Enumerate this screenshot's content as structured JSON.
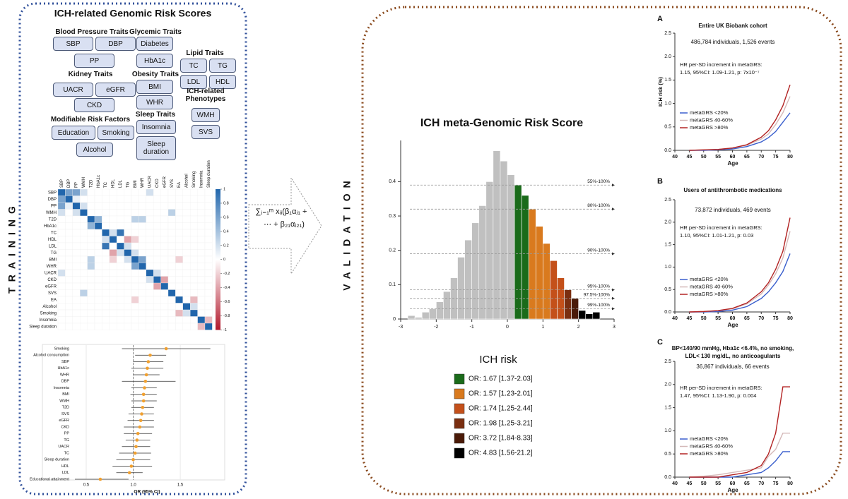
{
  "training": {
    "side_label": "TRAINING",
    "title": "ICH-related Genomic Risk Scores",
    "groups": [
      {
        "title": "Blood Pressure Traits",
        "items": [
          "SBP",
          "DBP",
          "PP"
        ]
      },
      {
        "title": "Kidney Traits",
        "items": [
          "UACR",
          "eGFR",
          "CKD"
        ]
      },
      {
        "title": "Modifiable Risk Factors",
        "items": [
          "Education",
          "Smoking",
          "Alcohol"
        ]
      },
      {
        "title": "Glycemic Traits",
        "items": [
          "Diabetes",
          "HbA1c"
        ]
      },
      {
        "title": "Obesity Traits",
        "items": [
          "BMI",
          "WHR"
        ]
      },
      {
        "title": "Sleep Traits",
        "items": [
          "Insomnia",
          "Sleep duration"
        ]
      },
      {
        "title": "Lipid Traits",
        "items": [
          "TC",
          "TG",
          "LDL",
          "HDL"
        ]
      },
      {
        "title": "ICH-related Phenotypes",
        "items": [
          "WMH",
          "SVS"
        ]
      }
    ]
  },
  "formula": [
    "∑ⱼ₌₁ᵐ xᵢⱼ(β₁αⱼ₁ +",
    "⋯ + β₂₁αⱼ₂₁)"
  ],
  "validation": {
    "side_label": "VALIDATION",
    "legend": {
      "title": "ICH risk",
      "items": [
        {
          "label": "OR: 1.67 [1.37-2.03]",
          "color": "#1a6b1a"
        },
        {
          "label": "OR: 1.57 [1.23-2.01]",
          "color": "#d97a1e"
        },
        {
          "label": "OR: 1.74 [1.25-2.44]",
          "color": "#c4501a"
        },
        {
          "label": "OR: 1.98 [1.25-3.21]",
          "color": "#7a2e10"
        },
        {
          "label": "OR: 3.72 [1.84-8.33]",
          "color": "#4a1a08"
        },
        {
          "label": "OR: 4.83 [1.56-21.2]",
          "color": "#000000"
        }
      ]
    }
  },
  "chart_data": [
    {
      "type": "heatmap",
      "labels": [
        "SBP",
        "DBP",
        "PP",
        "WMH",
        "T2D",
        "HbA1c",
        "TC",
        "HDL",
        "LDL",
        "TG",
        "BMI",
        "WHR",
        "UACR",
        "CKD",
        "eGFR",
        "SVS",
        "EA",
        "Alcohol",
        "Smoking",
        "Insomnia",
        "Sleep duration"
      ],
      "values": [
        [
          1,
          0.6,
          0.6,
          0.2,
          0,
          0,
          0,
          0,
          0,
          0,
          0,
          0,
          0.2,
          0,
          0,
          0,
          0,
          0,
          0,
          0,
          0
        ],
        [
          0.6,
          1,
          0.1,
          0,
          0,
          0,
          0,
          0,
          0,
          0,
          0,
          0,
          0,
          0,
          0,
          0,
          0,
          0,
          0,
          0,
          0
        ],
        [
          0.6,
          0.1,
          1,
          0.2,
          0,
          0,
          0,
          0,
          0,
          0,
          0,
          0,
          0,
          0,
          0,
          0,
          0,
          0,
          0,
          0,
          0
        ],
        [
          0.2,
          0,
          0.2,
          1,
          0,
          0,
          0,
          0,
          0,
          0,
          0,
          0,
          0,
          0,
          0,
          0.3,
          0,
          0,
          0,
          0,
          0
        ],
        [
          0,
          0,
          0,
          0,
          1,
          0.5,
          0,
          0,
          0,
          0,
          0.3,
          0.3,
          0,
          0,
          0,
          0,
          0,
          0,
          0,
          0,
          0
        ],
        [
          0,
          0,
          0,
          0,
          0.5,
          1,
          0,
          0,
          0,
          0,
          0,
          0,
          0,
          0,
          0,
          0,
          0,
          0,
          0,
          0,
          0
        ],
        [
          0,
          0,
          0,
          0,
          0,
          0,
          1,
          0.2,
          0.9,
          0,
          0,
          0,
          0,
          0,
          0,
          0,
          0,
          0,
          0,
          0,
          0
        ],
        [
          0,
          0,
          0,
          0,
          0,
          0,
          0.2,
          1,
          0,
          -0.4,
          -0.2,
          0,
          0,
          0,
          0,
          0,
          0,
          0,
          0,
          0,
          0
        ],
        [
          0,
          0,
          0,
          0,
          0,
          0,
          0.9,
          0,
          1,
          0.2,
          0,
          0,
          0,
          0,
          0,
          0,
          0,
          0,
          0,
          0,
          0
        ],
        [
          0,
          0,
          0,
          0,
          0,
          0,
          0,
          -0.4,
          0.2,
          1,
          0.2,
          0,
          0,
          0,
          0,
          0,
          0,
          0,
          0,
          0,
          0
        ],
        [
          0,
          0,
          0,
          0,
          0.3,
          0,
          0,
          -0.2,
          0,
          0.2,
          1,
          0.6,
          0,
          0,
          0,
          0,
          -0.2,
          0,
          0,
          0,
          0
        ],
        [
          0,
          0,
          0,
          0,
          0.3,
          0,
          0,
          0,
          0,
          0,
          0.6,
          1,
          0,
          0,
          0,
          0,
          0,
          0,
          0,
          0,
          0
        ],
        [
          0.2,
          0,
          0,
          0,
          0,
          0,
          0,
          0,
          0,
          0,
          0,
          0,
          1,
          0.2,
          0,
          0,
          0,
          0,
          0,
          0,
          0
        ],
        [
          0,
          0,
          0,
          0,
          0,
          0,
          0,
          0,
          0,
          0,
          0,
          0,
          0.2,
          1,
          -0.4,
          0,
          0,
          0,
          0,
          0,
          0
        ],
        [
          0,
          0,
          0,
          0,
          0,
          0,
          0,
          0,
          0,
          0,
          0,
          0,
          0,
          -0.4,
          1,
          0,
          0,
          0,
          0,
          0,
          0
        ],
        [
          0,
          0,
          0,
          0.3,
          0,
          0,
          0,
          0,
          0,
          0,
          0,
          0,
          0,
          0,
          0,
          1,
          0,
          0,
          0,
          0,
          0
        ],
        [
          0,
          0,
          0,
          0,
          0,
          0,
          0,
          0,
          0,
          0,
          -0.2,
          0,
          0,
          0,
          0,
          0,
          1,
          0,
          -0.3,
          0,
          0
        ],
        [
          0,
          0,
          0,
          0,
          0,
          0,
          0,
          0,
          0,
          0,
          0,
          0,
          0,
          0,
          0,
          0,
          0,
          1,
          0.2,
          0,
          0
        ],
        [
          0,
          0,
          0,
          0,
          0,
          0,
          0,
          0,
          0,
          0,
          0,
          0,
          0,
          0,
          0,
          0,
          -0.3,
          0.2,
          1,
          0,
          0
        ],
        [
          0,
          0,
          0,
          0,
          0,
          0,
          0,
          0,
          0,
          0,
          0,
          0,
          0,
          0,
          0,
          0,
          0,
          0,
          0,
          1,
          -0.3
        ],
        [
          0,
          0,
          0,
          0,
          0,
          0,
          0,
          0,
          0,
          0,
          0,
          0,
          0,
          0,
          0,
          0,
          0,
          0,
          0,
          -0.3,
          1
        ]
      ],
      "zlim": [
        -1,
        1
      ],
      "colorbar_ticks": [
        1,
        0.8,
        0.6,
        0.4,
        0.2,
        0,
        -0.2,
        -0.4,
        -0.6,
        -0.8,
        -1
      ],
      "colors": [
        "#b2182b",
        "#ffffff",
        "#2166ac"
      ]
    },
    {
      "type": "forest",
      "categories": [
        "Smoking",
        "Alcohol consumption",
        "SBP",
        "HbA1c",
        "WHR",
        "DBP",
        "Insomnia",
        "BMI",
        "WMH",
        "T2D",
        "SVS",
        "eGFR",
        "CKD",
        "PP",
        "TG",
        "UACR",
        "TC",
        "Sleep duration",
        "HDL",
        "LDL",
        "Educational attainment"
      ],
      "values": [
        1.35,
        1.18,
        1.16,
        1.15,
        1.14,
        1.13,
        1.12,
        1.11,
        1.11,
        1.1,
        1.09,
        1.08,
        1.07,
        1.05,
        1.04,
        1.03,
        1.02,
        1.0,
        0.98,
        0.96,
        0.65
      ],
      "lower": [
        0.88,
        1.02,
        1.0,
        0.98,
        1.0,
        0.88,
        0.98,
        0.97,
        0.98,
        0.98,
        0.95,
        0.94,
        0.9,
        0.9,
        0.92,
        0.88,
        0.85,
        0.82,
        0.78,
        0.82,
        0.38
      ],
      "upper": [
        1.82,
        1.35,
        1.32,
        1.32,
        1.28,
        1.45,
        1.25,
        1.25,
        1.25,
        1.22,
        1.22,
        1.22,
        1.22,
        1.2,
        1.18,
        1.18,
        1.19,
        1.18,
        1.2,
        1.1,
        0.95
      ],
      "xlim": [
        0.35,
        1.95
      ],
      "xticks": [
        0.5,
        {
          "value": 1,
          "label": "1.0"
        },
        1.5
      ],
      "reference": 1,
      "xlabel": "OR (95% CI)",
      "color": "#f0a030",
      "grid": true
    },
    {
      "type": "histogram",
      "title": "ICH meta-Genomic Risk Score",
      "bins": [
        -2.8,
        -2.6,
        -2.4,
        -2.2,
        -2,
        -1.8,
        -1.6,
        -1.4,
        -1.2,
        -1,
        -0.8,
        -0.6,
        -0.4,
        -0.2,
        0,
        0.2,
        0.4,
        0.6,
        0.8,
        1,
        1.2,
        1.4,
        1.6,
        1.8,
        2,
        2.2,
        2.4,
        2.6
      ],
      "values": [
        0.01,
        0.005,
        0.02,
        0.03,
        0.05,
        0.08,
        0.12,
        0.18,
        0.23,
        0.28,
        0.33,
        0.4,
        0.49,
        0.46,
        0.42,
        0.39,
        0.36,
        0.32,
        0.27,
        0.22,
        0.17,
        0.12,
        0.085,
        0.06,
        0.025,
        0.015,
        0.02
      ],
      "colors": [
        "#c0c0c0",
        "#c0c0c0",
        "#c0c0c0",
        "#c0c0c0",
        "#c0c0c0",
        "#c0c0c0",
        "#c0c0c0",
        "#c0c0c0",
        "#c0c0c0",
        "#c0c0c0",
        "#c0c0c0",
        "#c0c0c0",
        "#c0c0c0",
        "#c0c0c0",
        "#c0c0c0",
        "#1a6b1a",
        "#1a6b1a",
        "#d97a1e",
        "#d97a1e",
        "#d97a1e",
        "#c4501a",
        "#c4501a",
        "#7a2e10",
        "#4a1a08",
        "#000000",
        "#000000",
        "#000000"
      ],
      "xlim": [
        -3,
        3
      ],
      "ylim": [
        0,
        0.52
      ],
      "xticks": [
        -3,
        -2,
        -1,
        0,
        1,
        2,
        3
      ],
      "yticks": [
        0,
        0.1,
        0.2,
        0.3,
        0.4
      ],
      "thresholds": [
        {
          "label": "55%-100%",
          "value": 0.39
        },
        {
          "label": "80%-100%",
          "value": 0.32
        },
        {
          "label": "90%-100%",
          "value": 0.19
        },
        {
          "label": "95%-100%",
          "value": 0.085
        },
        {
          "label": "97.5%-100%",
          "value": 0.06
        },
        {
          "label": "99%-100%",
          "value": 0.03
        }
      ]
    },
    {
      "type": "line",
      "panel": "A",
      "title": [
        "Entire UK Biobank cohort"
      ],
      "subtitle": "486,784 individuals, 1,526 events",
      "hr_label": "HR per-SD increment in metaGRS:",
      "hr_text": "1.15, 95%CI: 1.09-1.21, p: 7x10⁻⁷",
      "xlabel": "Age",
      "ylabel": "ICH risk (%)",
      "xlim": [
        40,
        80
      ],
      "ylim": [
        0,
        2.5
      ],
      "xticks": [
        40,
        45,
        50,
        55,
        60,
        65,
        70,
        75,
        80
      ],
      "yticks": [
        {
          "value": 0,
          "label": "0.0"
        },
        0.5,
        {
          "value": 1,
          "label": "1.0"
        },
        1.5,
        {
          "value": 2,
          "label": "2.0"
        },
        2.5
      ],
      "x": [
        45,
        50,
        55,
        60,
        65,
        70,
        72.5,
        75,
        77.5,
        80
      ],
      "series": [
        {
          "name": "metaGRS <20%",
          "color": "#3a5fcd",
          "values": [
            0,
            0,
            0.01,
            0.03,
            0.08,
            0.18,
            0.27,
            0.4,
            0.6,
            0.8
          ]
        },
        {
          "name": "metaGRS 40-60%",
          "color": "#d4b8b8",
          "values": [
            0,
            0.01,
            0.02,
            0.05,
            0.11,
            0.24,
            0.35,
            0.55,
            0.8,
            1.15
          ]
        },
        {
          "name": "metaGRS >80%",
          "color": "#b22222",
          "values": [
            0,
            0.01,
            0.02,
            0.05,
            0.12,
            0.28,
            0.42,
            0.65,
            0.95,
            1.4
          ]
        }
      ]
    },
    {
      "type": "line",
      "panel": "B",
      "title": [
        "Users of antithrombotic medications"
      ],
      "subtitle": "73,872 individuals, 469 events",
      "hr_label": "HR per-SD increment in metaGRS:",
      "hr_text": "1.10, 95%CI: 1.01-1.21, p: 0.03",
      "xlabel": "Age",
      "xlim": [
        40,
        80
      ],
      "ylim": [
        0,
        2.5
      ],
      "xticks": [
        40,
        45,
        50,
        55,
        60,
        65,
        70,
        75,
        80
      ],
      "yticks": [
        {
          "value": 0,
          "label": "0.0"
        },
        0.5,
        {
          "value": 1,
          "label": "1.0"
        },
        1.5,
        {
          "value": 2,
          "label": "2.0"
        },
        2.5
      ],
      "x": [
        45,
        50,
        55,
        60,
        65,
        70,
        72.5,
        75,
        77.5,
        80
      ],
      "series": [
        {
          "name": "metaGRS <20%",
          "color": "#3a5fcd",
          "values": [
            0,
            0,
            0.01,
            0.04,
            0.12,
            0.3,
            0.45,
            0.65,
            0.9,
            1.3
          ]
        },
        {
          "name": "metaGRS 40-60%",
          "color": "#d4b8b8",
          "values": [
            0,
            0.01,
            0.03,
            0.07,
            0.18,
            0.4,
            0.6,
            0.85,
            1.2,
            1.8
          ]
        },
        {
          "name": "metaGRS >80%",
          "color": "#b22222",
          "values": [
            0,
            0.01,
            0.03,
            0.08,
            0.2,
            0.45,
            0.65,
            0.95,
            1.35,
            2.1
          ]
        }
      ]
    },
    {
      "type": "line",
      "panel": "C",
      "title": [
        "BP<140/90 mmHg, Hba1c <6.4%, no smoking,",
        "LDL< 130 mg/dL, no anticoagulants"
      ],
      "subtitle": "36,867 individuals, 66 events",
      "hr_label": "HR per-SD increment in metaGRS:",
      "hr_text": "1.47, 95%CI: 1.13-1.90, p: 0.004",
      "xlabel": "Age",
      "xlim": [
        40,
        80
      ],
      "ylim": [
        0,
        2.5
      ],
      "xticks": [
        40,
        45,
        50,
        55,
        60,
        65,
        70,
        75,
        80
      ],
      "yticks": [
        {
          "value": 0,
          "label": "0.0"
        },
        0.5,
        {
          "value": 1,
          "label": "1.0"
        },
        1.5,
        {
          "value": 2,
          "label": "2.0"
        },
        2.5
      ],
      "x": [
        45,
        50,
        55,
        60,
        65,
        70,
        72.5,
        75,
        77.5,
        80
      ],
      "series": [
        {
          "name": "metaGRS <20%",
          "color": "#3a5fcd",
          "values": [
            0,
            0,
            0,
            0,
            0.05,
            0.1,
            0.2,
            0.35,
            0.55,
            0.55
          ]
        },
        {
          "name": "metaGRS 40-60%",
          "color": "#d4b8b8",
          "values": [
            0,
            0.02,
            0.05,
            0.1,
            0.15,
            0.2,
            0.45,
            0.6,
            0.95,
            0.95
          ]
        },
        {
          "name": "metaGRS >80%",
          "color": "#b22222",
          "values": [
            0,
            0,
            0,
            0.05,
            0.1,
            0.25,
            0.5,
            0.95,
            1.95,
            1.95
          ]
        }
      ]
    }
  ]
}
